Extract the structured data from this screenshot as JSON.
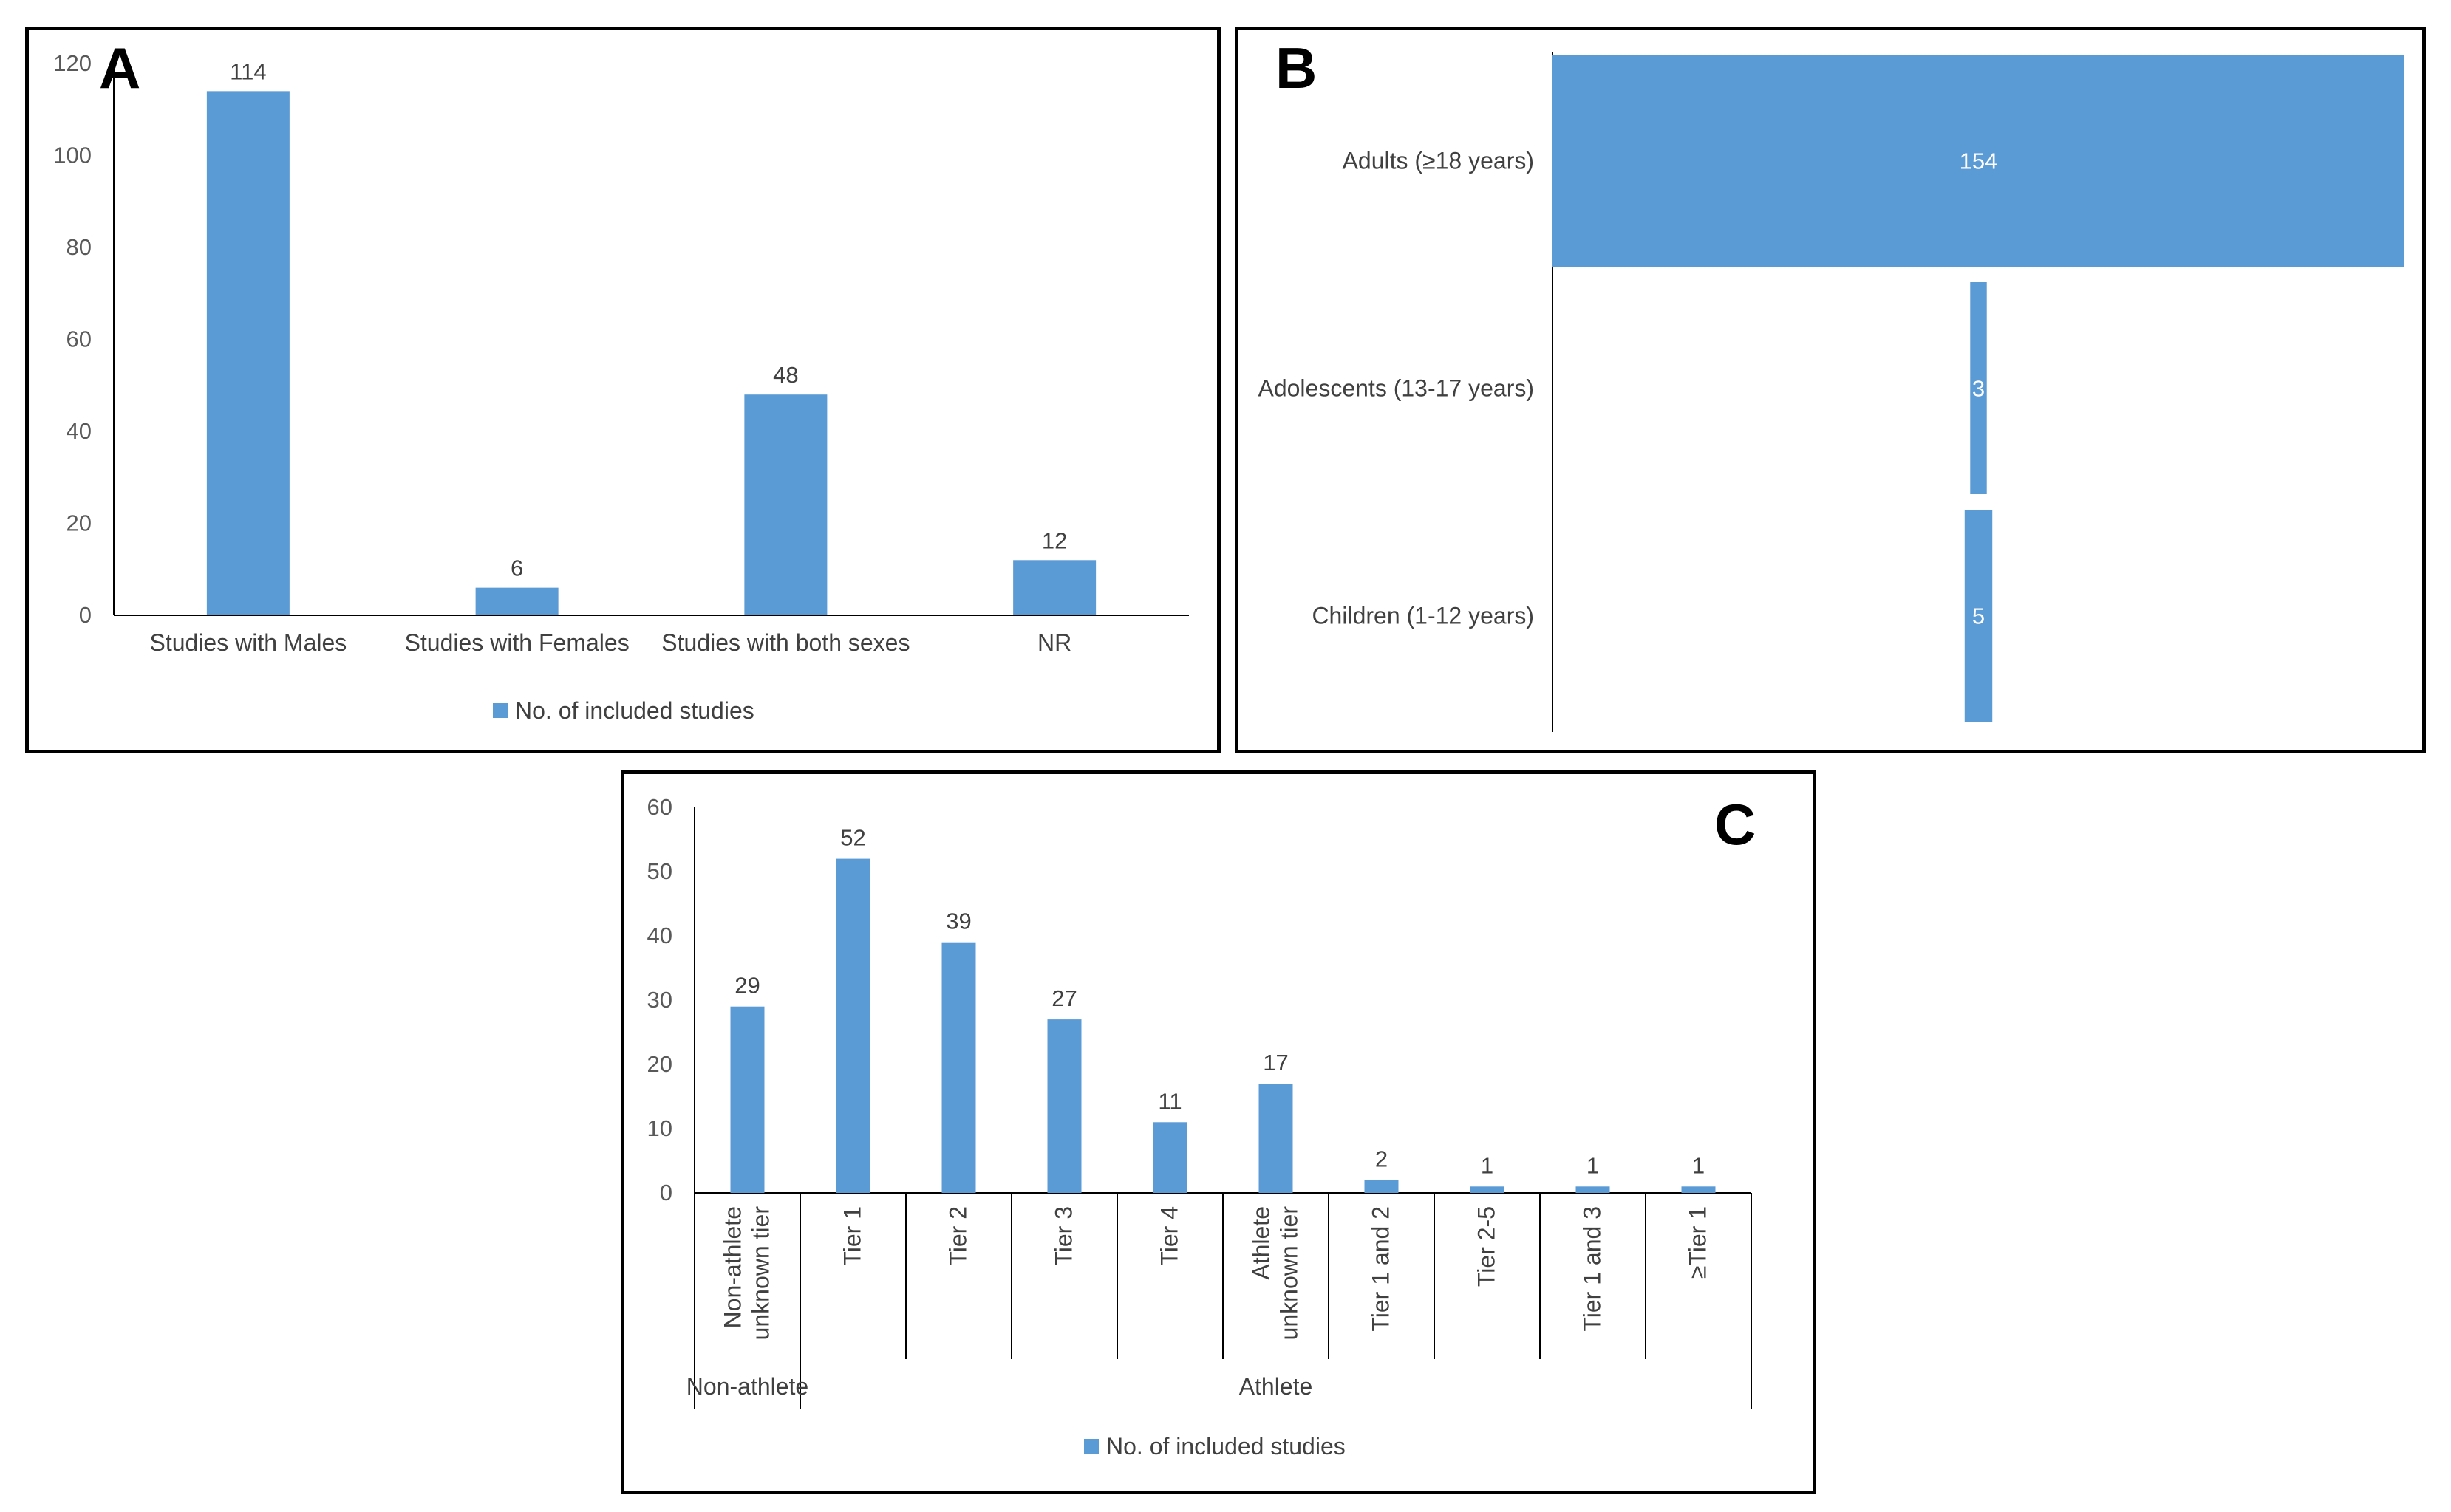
{
  "chart_data": [
    {
      "panel": "A",
      "type": "bar",
      "categories": [
        "Studies with Males",
        "Studies with Females",
        "Studies with both sexes",
        "NR"
      ],
      "series": [
        {
          "name": "No. of included studies",
          "values": [
            114,
            6,
            48,
            12
          ]
        }
      ],
      "yticks": [
        0,
        20,
        40,
        60,
        80,
        100,
        120
      ],
      "ylim": [
        0,
        120
      ],
      "legend": "No. of included studies",
      "legend_position": "bottom",
      "color": "#5B9BD5"
    },
    {
      "panel": "B",
      "type": "funnel",
      "categories": [
        "Adults (≥18 years)",
        "Adolescents (13-17 years)",
        "Children (1-12 years)"
      ],
      "values": [
        154,
        3,
        5
      ],
      "color": "#5B9BD5"
    },
    {
      "panel": "C",
      "type": "bar",
      "categories": [
        "Non-athlete unknown tier",
        "Tier 1",
        "Tier 2",
        "Tier 3",
        "Tier 4",
        "Athlete unknown tier",
        "Tier 1 and 2",
        "Tier 2-5",
        "Tier 1 and 3",
        "≥Tier 1"
      ],
      "category_lines": [
        [
          "Non-athlete",
          "unknown tier"
        ],
        [
          "Tier 1"
        ],
        [
          "Tier 2"
        ],
        [
          "Tier 3"
        ],
        [
          "Tier 4"
        ],
        [
          "Athlete",
          "unknown tier"
        ],
        [
          "Tier 1 and 2"
        ],
        [
          "Tier 2-5"
        ],
        [
          "Tier 1 and 3"
        ],
        [
          "≥Tier 1"
        ]
      ],
      "groups": [
        {
          "label": "Non-athlete",
          "count": 1
        },
        {
          "label": "Athlete",
          "count": 9
        }
      ],
      "series": [
        {
          "name": "No. of included studies",
          "values": [
            29,
            52,
            39,
            27,
            11,
            17,
            2,
            1,
            1,
            1
          ]
        }
      ],
      "yticks": [
        0,
        10,
        20,
        30,
        40,
        50,
        60
      ],
      "ylim": [
        0,
        60
      ],
      "legend": "No. of included studies",
      "legend_position": "bottom",
      "color": "#5B9BD5"
    }
  ]
}
